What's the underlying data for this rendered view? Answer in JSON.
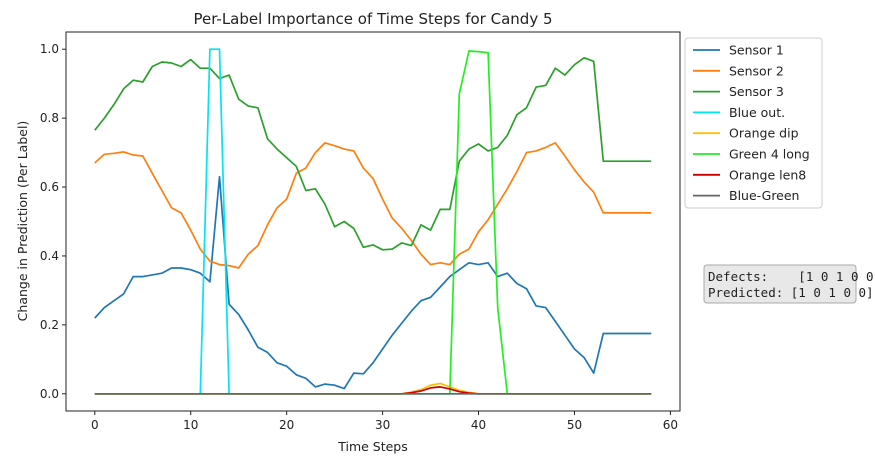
{
  "chart_data": {
    "type": "line",
    "title": "Per-Label Importance of Time Steps for Candy 5",
    "xlabel": "Time Steps",
    "ylabel": "Change in Prediction (Per Label)",
    "xlim": [
      -3,
      61
    ],
    "ylim": [
      -0.05,
      1.05
    ],
    "xticks": [
      0,
      10,
      20,
      30,
      40,
      50,
      60
    ],
    "yticks": [
      0.0,
      0.2,
      0.4,
      0.6,
      0.8,
      1.0
    ],
    "grid": false,
    "legend_position": "outside-right-top",
    "annotation": {
      "lines": [
        "Defects:    [1 0 1 0 0]",
        "Predicted: [1 0 1 0 0]"
      ]
    },
    "series": [
      {
        "name": "Sensor 1",
        "color": "#1f77b4",
        "x": [
          0,
          1,
          2,
          3,
          4,
          5,
          6,
          7,
          8,
          9,
          10,
          11,
          12,
          13,
          14,
          15,
          16,
          17,
          18,
          19,
          20,
          21,
          22,
          23,
          24,
          25,
          26,
          27,
          28,
          29,
          30,
          31,
          32,
          33,
          34,
          35,
          36,
          37,
          38,
          39,
          40,
          41,
          42,
          43,
          44,
          45,
          46,
          47,
          48,
          49,
          50,
          51,
          52,
          53,
          54,
          55,
          56,
          57,
          58
        ],
        "y": [
          0.22,
          0.25,
          0.27,
          0.29,
          0.34,
          0.34,
          0.345,
          0.35,
          0.365,
          0.365,
          0.36,
          0.35,
          0.325,
          0.63,
          0.26,
          0.23,
          0.185,
          0.135,
          0.12,
          0.09,
          0.08,
          0.055,
          0.045,
          0.02,
          0.028,
          0.025,
          0.015,
          0.06,
          0.058,
          0.09,
          0.13,
          0.17,
          0.205,
          0.24,
          0.27,
          0.28,
          0.31,
          0.34,
          0.36,
          0.38,
          0.375,
          0.38,
          0.34,
          0.35,
          0.32,
          0.305,
          0.255,
          0.25,
          0.21,
          0.17,
          0.13,
          0.105,
          0.06,
          0.175,
          0.175,
          0.175,
          0.175,
          0.175,
          0.175
        ]
      },
      {
        "name": "Sensor 2",
        "color": "#ff7f0e",
        "x": [
          0,
          1,
          2,
          3,
          4,
          5,
          6,
          7,
          8,
          9,
          10,
          11,
          12,
          13,
          14,
          15,
          16,
          17,
          18,
          19,
          20,
          21,
          22,
          23,
          24,
          25,
          26,
          27,
          28,
          29,
          30,
          31,
          32,
          33,
          34,
          35,
          36,
          37,
          38,
          39,
          40,
          41,
          42,
          43,
          44,
          45,
          46,
          47,
          48,
          49,
          50,
          51,
          52,
          53,
          54,
          55,
          56,
          57,
          58
        ],
        "y": [
          0.67,
          0.695,
          0.698,
          0.702,
          0.693,
          0.69,
          0.64,
          0.59,
          0.54,
          0.525,
          0.475,
          0.42,
          0.385,
          0.375,
          0.372,
          0.365,
          0.405,
          0.43,
          0.49,
          0.54,
          0.565,
          0.64,
          0.655,
          0.7,
          0.728,
          0.72,
          0.71,
          0.705,
          0.655,
          0.625,
          0.565,
          0.51,
          0.48,
          0.445,
          0.405,
          0.375,
          0.38,
          0.375,
          0.405,
          0.42,
          0.47,
          0.505,
          0.55,
          0.595,
          0.645,
          0.7,
          0.705,
          0.715,
          0.728,
          0.69,
          0.65,
          0.615,
          0.585,
          0.525,
          0.525,
          0.525,
          0.525,
          0.525,
          0.525
        ]
      },
      {
        "name": "Sensor 3",
        "color": "#2ca02c",
        "x": [
          0,
          1,
          2,
          3,
          4,
          5,
          6,
          7,
          8,
          9,
          10,
          11,
          12,
          13,
          14,
          15,
          16,
          17,
          18,
          19,
          20,
          21,
          22,
          23,
          24,
          25,
          26,
          27,
          28,
          29,
          30,
          31,
          32,
          33,
          34,
          35,
          36,
          37,
          38,
          39,
          40,
          41,
          42,
          43,
          44,
          45,
          46,
          47,
          48,
          49,
          50,
          51,
          52,
          53,
          54,
          55,
          56,
          57,
          58
        ],
        "y": [
          0.765,
          0.8,
          0.84,
          0.885,
          0.91,
          0.905,
          0.95,
          0.963,
          0.96,
          0.95,
          0.97,
          0.945,
          0.945,
          0.915,
          0.925,
          0.855,
          0.835,
          0.83,
          0.74,
          0.71,
          0.685,
          0.66,
          0.59,
          0.595,
          0.55,
          0.485,
          0.5,
          0.48,
          0.425,
          0.432,
          0.418,
          0.42,
          0.438,
          0.43,
          0.49,
          0.475,
          0.535,
          0.535,
          0.675,
          0.71,
          0.725,
          0.705,
          0.715,
          0.75,
          0.81,
          0.83,
          0.89,
          0.895,
          0.945,
          0.925,
          0.955,
          0.975,
          0.965,
          0.675,
          0.675,
          0.675,
          0.675,
          0.675,
          0.675
        ]
      },
      {
        "name": "Blue out.",
        "color": "#00e5ee",
        "x": [
          0,
          11,
          12,
          13,
          14,
          58
        ],
        "y": [
          0,
          0,
          1.0,
          1.0,
          0,
          0
        ]
      },
      {
        "name": "Orange dip",
        "color": "#ffc000",
        "x": [
          0,
          32,
          33,
          34,
          35,
          36,
          37,
          38,
          39,
          40,
          58
        ],
        "y": [
          0,
          0,
          0.005,
          0.012,
          0.025,
          0.03,
          0.02,
          0.01,
          0.004,
          0,
          0
        ]
      },
      {
        "name": "Green 4 long",
        "color": "#22ee22",
        "x": [
          0,
          37,
          38,
          39,
          40,
          41,
          42,
          43,
          58
        ],
        "y": [
          0,
          0,
          0.87,
          0.995,
          0.993,
          0.99,
          0.25,
          0,
          0
        ]
      },
      {
        "name": "Orange len8",
        "color": "#cc0000",
        "x": [
          0,
          32,
          33,
          34,
          35,
          36,
          37,
          38,
          39,
          40,
          58
        ],
        "y": [
          0,
          0,
          0.003,
          0.008,
          0.017,
          0.02,
          0.014,
          0.006,
          0.002,
          0,
          0
        ]
      },
      {
        "name": "Blue-Green",
        "color": "#666666",
        "x": [
          0,
          58
        ],
        "y": [
          0,
          0
        ]
      }
    ]
  }
}
